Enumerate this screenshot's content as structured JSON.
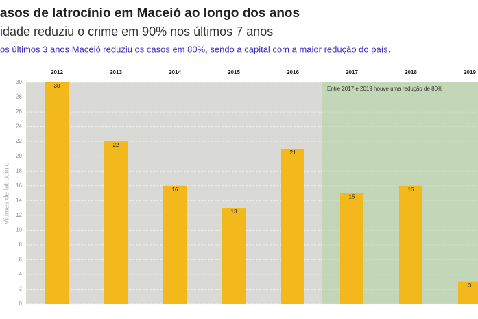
{
  "chart_data": {
    "type": "bar",
    "title": "asos de latrocínio em Maceió ao longo dos anos",
    "subtitle": "idade reduziu o crime em 90% nos últimos 7 anos",
    "note": "os últimos 3 anos Maceió reduziu os casos em 80%, sendo a capital com a maior redução do país.",
    "y_label": "Vítimas de latrocínio",
    "annotation": "Entre 2017 e 2019 houve uma redução de 80%",
    "categories": [
      "2012",
      "2013",
      "2014",
      "2015",
      "2016",
      "2017",
      "2018",
      "2019"
    ],
    "values": [
      30,
      22,
      16,
      13,
      21,
      15,
      16,
      3
    ],
    "color": "#f2b81c",
    "ylim": [
      0,
      30
    ],
    "yticks": [
      0,
      2,
      4,
      6,
      8,
      10,
      12,
      14,
      16,
      18,
      20,
      22,
      24,
      26,
      28,
      30
    ],
    "grid": true
  }
}
